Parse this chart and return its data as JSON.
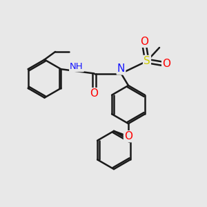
{
  "background_color": "#e8e8e8",
  "bond_color": "#1a1a1a",
  "bond_width": 1.8,
  "atom_colors": {
    "N": "#1414ff",
    "O": "#ff0000",
    "S": "#cccc00",
    "H": "#888888",
    "C": "#1a1a1a"
  },
  "font_size_atoms": 10,
  "fig_size": [
    3.0,
    3.0
  ],
  "dpi": 100
}
